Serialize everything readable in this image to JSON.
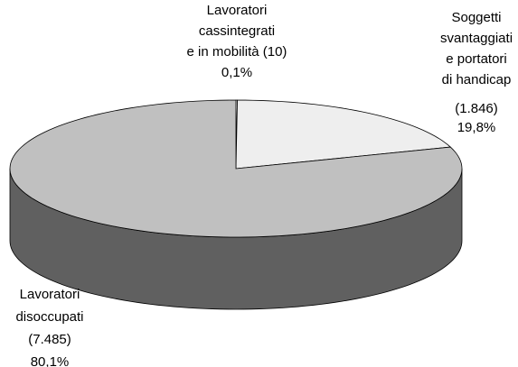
{
  "chart_data": {
    "type": "pie3d",
    "categories": [
      [
        "Lavoratori",
        "cassintegrati",
        "e in mobilità (10)"
      ],
      [
        "Soggetti",
        "svantaggiati",
        "e portatori",
        "di handicap",
        "(1.846)"
      ],
      [
        "Lavoratori",
        "disoccupati",
        "(7.485)"
      ]
    ],
    "values": [
      0.1,
      19.8,
      80.1
    ],
    "value_labels": [
      "0,1%",
      "19,8%",
      "80,1%"
    ],
    "colors": [
      "#ffffff",
      "#eeeeee",
      "#c0c0c0"
    ]
  }
}
